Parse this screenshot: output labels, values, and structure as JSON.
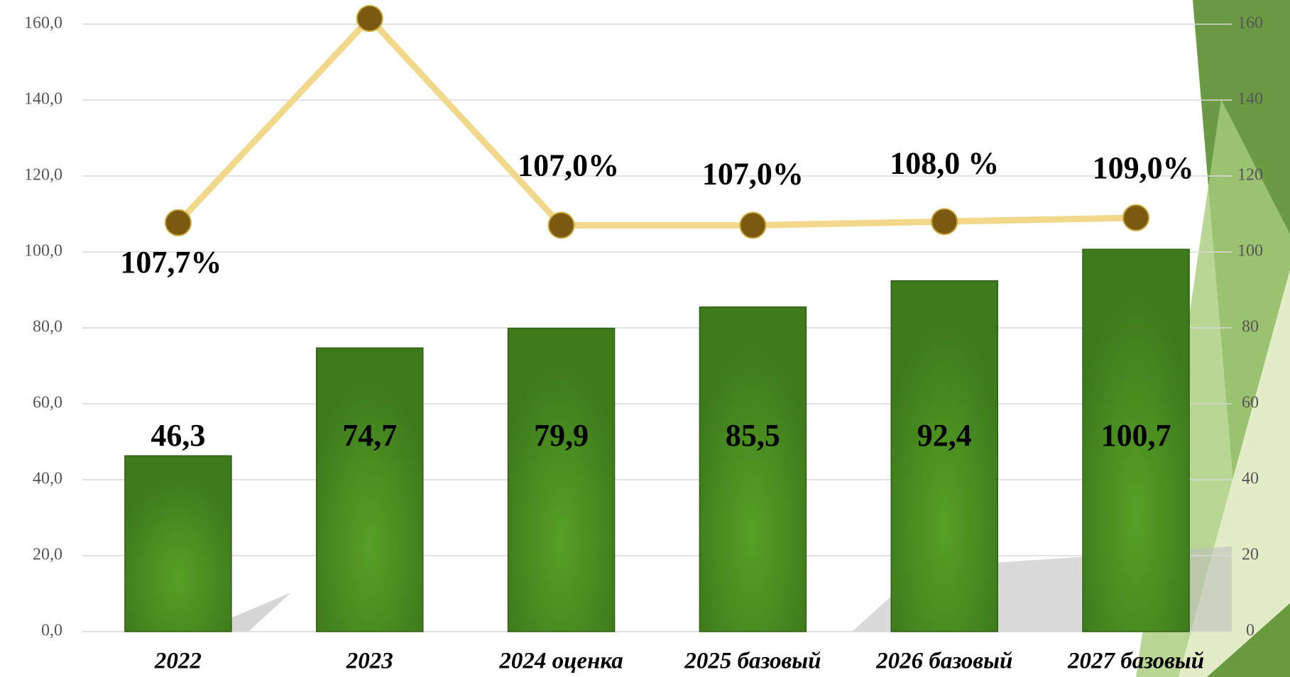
{
  "chart_data": {
    "type": "bar",
    "categories": [
      "2022",
      "2023",
      "2024 оценка",
      "2025 базовый",
      "2026 базовый",
      "2027 базовый"
    ],
    "series": [
      {
        "type": "bar",
        "color": "#4a8a22",
        "values": [
          46.3,
          74.7,
          79.9,
          85.5,
          92.4,
          100.7
        ],
        "value_labels": [
          "46,3",
          "74,7",
          "79,9",
          "85,5",
          "92,4",
          "100,7"
        ]
      },
      {
        "type": "line",
        "axis": "y2",
        "color": "#f1d88a",
        "marker_color": "#7a5a10",
        "values": [
          107.7,
          161.5,
          107.0,
          107.0,
          108.0,
          109.0
        ],
        "value_labels": [
          "107,7%",
          null,
          "107,0%",
          "107,0%",
          "108,0 %",
          "109,0%"
        ]
      }
    ],
    "ylim": [
      0,
      160
    ],
    "yticks": [
      {
        "value": 0,
        "label": "0,0"
      },
      {
        "value": 20,
        "label": "20,0"
      },
      {
        "value": 40,
        "label": "40,0"
      },
      {
        "value": 60,
        "label": "60,0"
      },
      {
        "value": 80,
        "label": "80,0"
      },
      {
        "value": 100,
        "label": "100,0"
      },
      {
        "value": 120,
        "label": "120,0"
      },
      {
        "value": 140,
        "label": "140,0"
      },
      {
        "value": 160,
        "label": "160,0"
      }
    ],
    "y2lim": [
      0,
      160
    ],
    "y2ticks": [
      0,
      20,
      40,
      60,
      80,
      100,
      120,
      140,
      160
    ],
    "grid": true
  }
}
